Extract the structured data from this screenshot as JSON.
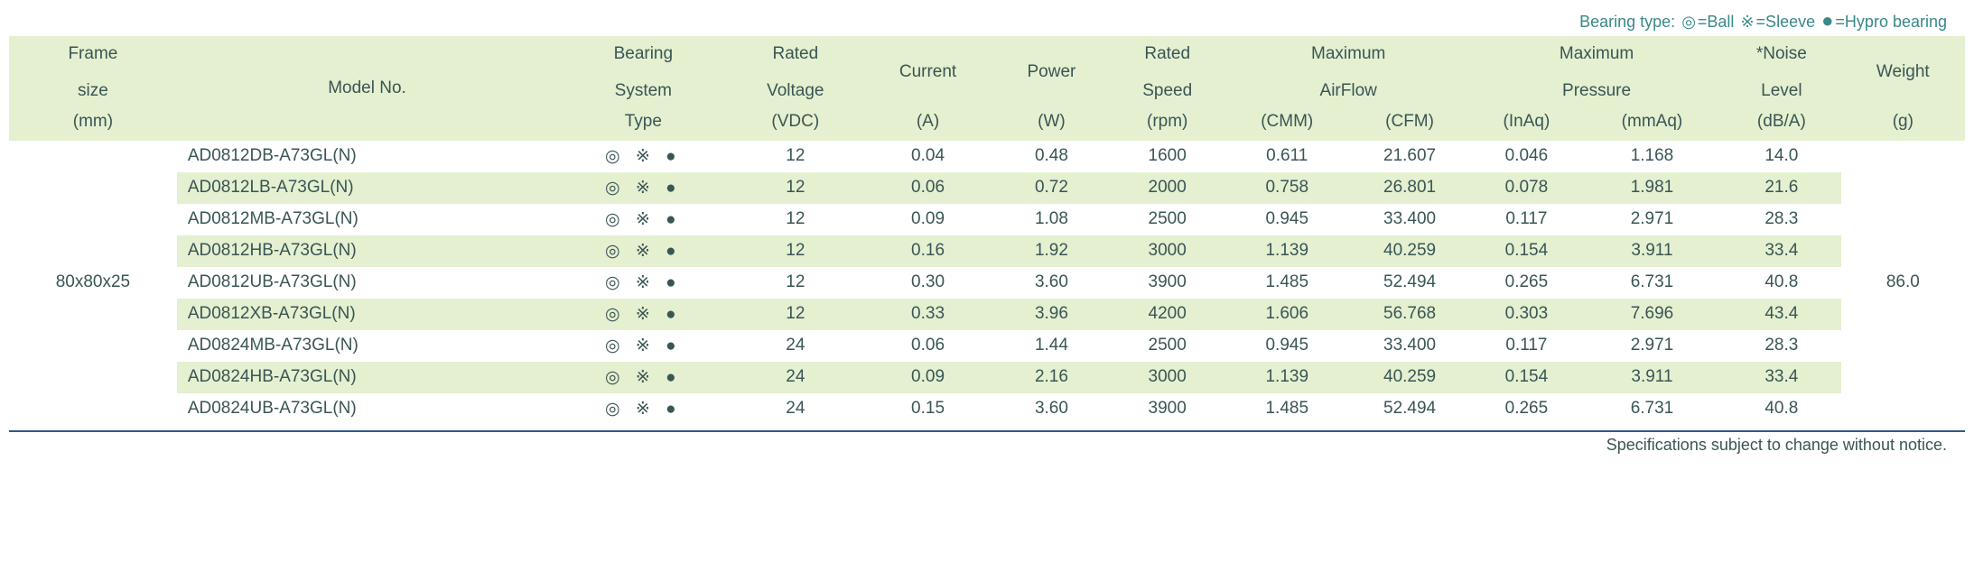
{
  "legend": {
    "prefix": "Bearing type:",
    "ball_symbol": "◎",
    "ball_label": "=Ball",
    "sleeve_symbol": "※",
    "sleeve_label": "=Sleeve",
    "hypro_symbol": "●",
    "hypro_label": "=Hypro bearing"
  },
  "headers": {
    "frame_size": "Frame",
    "frame_size2": "size",
    "frame_size3": "(mm)",
    "model_no": "Model No.",
    "bearing": "Bearing",
    "bearing2": "System",
    "bearing3": "Type",
    "rated_voltage": "Rated",
    "rated_voltage2": "Voltage",
    "rated_voltage3": "(VDC)",
    "current": "Current",
    "current2": "(A)",
    "power": "Power",
    "power2": "(W)",
    "rated_speed": "Rated",
    "rated_speed2": "Speed",
    "rated_speed3": "(rpm)",
    "max_airflow": "Maximum",
    "max_airflow2": "AirFlow",
    "airflow_cmm": "(CMM)",
    "airflow_cfm": "(CFM)",
    "max_pressure": "Maximum",
    "max_pressure2": "Pressure",
    "pressure_inaq": "(InAq)",
    "pressure_mmaq": "(mmAq)",
    "noise": "*Noise",
    "noise2": "Level",
    "noise3": "(dB/A)",
    "weight": "Weight",
    "weight2": "(g)"
  },
  "frame_size": "80x80x25",
  "weight": "86.0",
  "bearing_display": "◎ ※   ●",
  "rows": [
    {
      "model": "AD0812DB-A73GL(N)",
      "voltage": "12",
      "current": "0.04",
      "power": "0.48",
      "speed": "1600",
      "cmm": "0.611",
      "cfm": "21.607",
      "inaq": "0.046",
      "mmaq": "1.168",
      "noise": "14.0"
    },
    {
      "model": "AD0812LB-A73GL(N)",
      "voltage": "12",
      "current": "0.06",
      "power": "0.72",
      "speed": "2000",
      "cmm": "0.758",
      "cfm": "26.801",
      "inaq": "0.078",
      "mmaq": "1.981",
      "noise": "21.6"
    },
    {
      "model": "AD0812MB-A73GL(N)",
      "voltage": "12",
      "current": "0.09",
      "power": "1.08",
      "speed": "2500",
      "cmm": "0.945",
      "cfm": "33.400",
      "inaq": "0.117",
      "mmaq": "2.971",
      "noise": "28.3"
    },
    {
      "model": "AD0812HB-A73GL(N)",
      "voltage": "12",
      "current": "0.16",
      "power": "1.92",
      "speed": "3000",
      "cmm": "1.139",
      "cfm": "40.259",
      "inaq": "0.154",
      "mmaq": "3.911",
      "noise": "33.4"
    },
    {
      "model": "AD0812UB-A73GL(N)",
      "voltage": "12",
      "current": "0.30",
      "power": "3.60",
      "speed": "3900",
      "cmm": "1.485",
      "cfm": "52.494",
      "inaq": "0.265",
      "mmaq": "6.731",
      "noise": "40.8"
    },
    {
      "model": "AD0812XB-A73GL(N)",
      "voltage": "12",
      "current": "0.33",
      "power": "3.96",
      "speed": "4200",
      "cmm": "1.606",
      "cfm": "56.768",
      "inaq": "0.303",
      "mmaq": "7.696",
      "noise": "43.4"
    },
    {
      "model": "AD0824MB-A73GL(N)",
      "voltage": "24",
      "current": "0.06",
      "power": "1.44",
      "speed": "2500",
      "cmm": "0.945",
      "cfm": "33.400",
      "inaq": "0.117",
      "mmaq": "2.971",
      "noise": "28.3"
    },
    {
      "model": "AD0824HB-A73GL(N)",
      "voltage": "24",
      "current": "0.09",
      "power": "2.16",
      "speed": "3000",
      "cmm": "1.139",
      "cfm": "40.259",
      "inaq": "0.154",
      "mmaq": "3.911",
      "noise": "33.4"
    },
    {
      "model": "AD0824UB-A73GL(N)",
      "voltage": "24",
      "current": "0.15",
      "power": "3.60",
      "speed": "3900",
      "cmm": "1.485",
      "cfm": "52.494",
      "inaq": "0.265",
      "mmaq": "6.731",
      "noise": "40.8"
    }
  ],
  "footer": "Specifications subject to change without notice.",
  "colors": {
    "header_bg": "#e4f0d0",
    "row_even_bg": "#e4f0d0",
    "row_odd_bg": "#ffffff",
    "text": "#3a5555",
    "legend_text": "#3a8888",
    "border_bottom": "#2a5a8a"
  }
}
